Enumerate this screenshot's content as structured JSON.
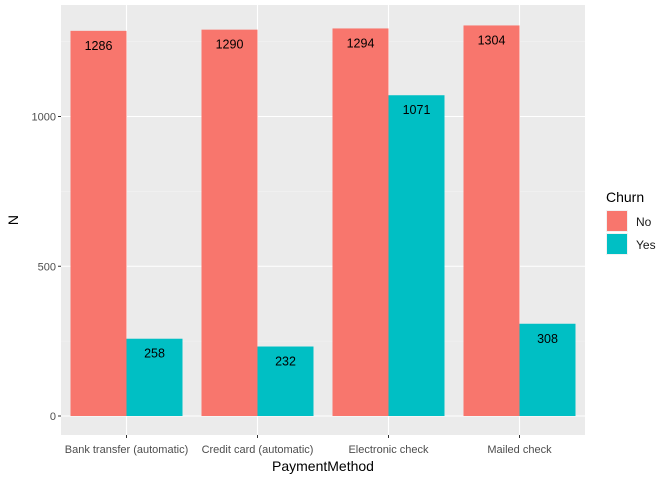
{
  "chart_data": {
    "type": "bar",
    "xlabel": "PaymentMethod",
    "ylabel": "N",
    "ylim": [
      0,
      1330
    ],
    "yticks": [
      0,
      500,
      1000
    ],
    "grid": true,
    "categories": [
      "Bank transfer (automatic)",
      "Credit card (automatic)",
      "Electronic check",
      "Mailed check"
    ],
    "series": [
      {
        "name": "No",
        "color": "#F8766D",
        "values": [
          1286,
          1290,
          1294,
          1304
        ]
      },
      {
        "name": "Yes",
        "color": "#00BFC4",
        "values": [
          258,
          232,
          1071,
          308
        ]
      }
    ],
    "legend": {
      "title": "Churn",
      "position": "right"
    }
  }
}
